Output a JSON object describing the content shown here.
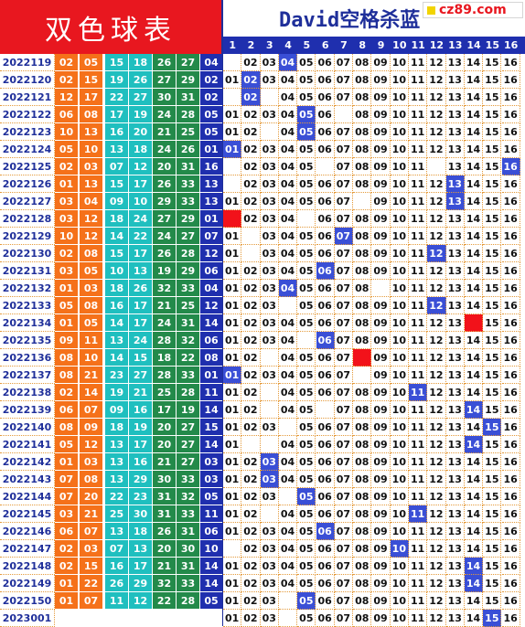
{
  "header": {
    "left_title": "双色球表",
    "right_title": "David空格杀蓝",
    "logo_text": "cz89.com"
  },
  "columns": [
    "1",
    "2",
    "3",
    "4",
    "5",
    "6",
    "7",
    "8",
    "9",
    "10",
    "11",
    "12",
    "13",
    "14",
    "15",
    "16"
  ],
  "colors": {
    "c1": "#f5711a",
    "c2": "#1fbfbf",
    "c3": "#238a4a",
    "blue": "#1f2fae",
    "hl": "#3a4fd6",
    "red": "#f2121a"
  },
  "chart_data": {
    "type": "table",
    "rows": [
      {
        "issue": "2022119",
        "reds": [
          "02",
          "05",
          "15",
          "18",
          "26",
          "27"
        ],
        "blue": "04",
        "hl": 4,
        "bl": [
          1
        ]
      },
      {
        "issue": "2022120",
        "reds": [
          "02",
          "15",
          "19",
          "26",
          "27",
          "29"
        ],
        "blue": "02",
        "hl": 2,
        "bl": []
      },
      {
        "issue": "2022121",
        "reds": [
          "12",
          "17",
          "22",
          "27",
          "30",
          "31"
        ],
        "blue": "02",
        "hl": 2,
        "bl": [
          1,
          3
        ]
      },
      {
        "issue": "2022122",
        "reds": [
          "06",
          "08",
          "17",
          "19",
          "24",
          "28"
        ],
        "blue": "05",
        "hl": 5,
        "bl": [
          7
        ]
      },
      {
        "issue": "2022123",
        "reds": [
          "10",
          "13",
          "16",
          "20",
          "21",
          "25"
        ],
        "blue": "05",
        "hl": 5,
        "bl": [
          3
        ]
      },
      {
        "issue": "2022124",
        "reds": [
          "05",
          "10",
          "13",
          "18",
          "24",
          "26"
        ],
        "blue": "01",
        "hl": 1,
        "bl": []
      },
      {
        "issue": "2022125",
        "reds": [
          "02",
          "03",
          "07",
          "12",
          "20",
          "31"
        ],
        "blue": "16",
        "hl": 16,
        "bl": [
          1,
          6,
          12
        ]
      },
      {
        "issue": "2022126",
        "reds": [
          "01",
          "13",
          "15",
          "17",
          "26",
          "33"
        ],
        "blue": "13",
        "hl": 13,
        "bl": [
          1
        ]
      },
      {
        "issue": "2022127",
        "reds": [
          "03",
          "04",
          "09",
          "10",
          "29",
          "33"
        ],
        "blue": "13",
        "hl": 13,
        "bl": [
          8
        ]
      },
      {
        "issue": "2022128",
        "reds": [
          "03",
          "12",
          "18",
          "24",
          "27",
          "29"
        ],
        "blue": "01",
        "hl": 1,
        "red": true,
        "bl": [
          5
        ]
      },
      {
        "issue": "2022129",
        "reds": [
          "10",
          "12",
          "14",
          "22",
          "24",
          "27"
        ],
        "blue": "07",
        "hl": 7,
        "bl": [
          2
        ]
      },
      {
        "issue": "2022130",
        "reds": [
          "02",
          "08",
          "15",
          "17",
          "26",
          "28"
        ],
        "blue": "12",
        "hl": 12,
        "bl": [
          2
        ]
      },
      {
        "issue": "2022131",
        "reds": [
          "03",
          "05",
          "10",
          "13",
          "19",
          "29"
        ],
        "blue": "06",
        "hl": 6,
        "bl": []
      },
      {
        "issue": "2022132",
        "reds": [
          "01",
          "03",
          "18",
          "26",
          "32",
          "33"
        ],
        "blue": "04",
        "hl": 4,
        "bl": [
          9
        ]
      },
      {
        "issue": "2022133",
        "reds": [
          "05",
          "08",
          "16",
          "17",
          "21",
          "25"
        ],
        "blue": "12",
        "hl": 12,
        "bl": [
          4
        ]
      },
      {
        "issue": "2022134",
        "reds": [
          "01",
          "05",
          "14",
          "17",
          "24",
          "31"
        ],
        "blue": "14",
        "hl": 14,
        "red": true,
        "bl": []
      },
      {
        "issue": "2022135",
        "reds": [
          "09",
          "11",
          "13",
          "24",
          "28",
          "32"
        ],
        "blue": "06",
        "hl": 6,
        "bl": [
          5
        ]
      },
      {
        "issue": "2022136",
        "reds": [
          "08",
          "10",
          "14",
          "15",
          "18",
          "22"
        ],
        "blue": "08",
        "hl": 8,
        "red": true,
        "bl": [
          3
        ]
      },
      {
        "issue": "2022137",
        "reds": [
          "08",
          "21",
          "23",
          "27",
          "28",
          "33"
        ],
        "blue": "01",
        "hl": 1,
        "bl": [
          8
        ]
      },
      {
        "issue": "2022138",
        "reds": [
          "02",
          "14",
          "19",
          "21",
          "25",
          "28"
        ],
        "blue": "11",
        "hl": 11,
        "bl": [
          3
        ]
      },
      {
        "issue": "2022139",
        "reds": [
          "06",
          "07",
          "09",
          "16",
          "17",
          "19"
        ],
        "blue": "14",
        "hl": 14,
        "bl": [
          3,
          6
        ]
      },
      {
        "issue": "2022140",
        "reds": [
          "08",
          "09",
          "18",
          "19",
          "20",
          "27"
        ],
        "blue": "15",
        "hl": 15,
        "bl": [
          4
        ]
      },
      {
        "issue": "2022141",
        "reds": [
          "05",
          "12",
          "13",
          "17",
          "20",
          "27"
        ],
        "blue": "14",
        "hl": 14,
        "bl": [
          2,
          3
        ]
      },
      {
        "issue": "2022142",
        "reds": [
          "01",
          "03",
          "13",
          "16",
          "21",
          "27"
        ],
        "blue": "03",
        "hl": 3,
        "bl": []
      },
      {
        "issue": "2022143",
        "reds": [
          "07",
          "08",
          "13",
          "29",
          "30",
          "33"
        ],
        "blue": "03",
        "hl": 3,
        "bl": []
      },
      {
        "issue": "2022144",
        "reds": [
          "07",
          "20",
          "22",
          "23",
          "31",
          "32"
        ],
        "blue": "05",
        "hl": 5,
        "bl": [
          4
        ]
      },
      {
        "issue": "2022145",
        "reds": [
          "03",
          "21",
          "25",
          "30",
          "31",
          "33"
        ],
        "blue": "11",
        "hl": 11,
        "bl": [
          3
        ]
      },
      {
        "issue": "2022146",
        "reds": [
          "06",
          "07",
          "13",
          "18",
          "26",
          "31"
        ],
        "blue": "06",
        "hl": 6,
        "bl": []
      },
      {
        "issue": "2022147",
        "reds": [
          "02",
          "03",
          "07",
          "13",
          "20",
          "30"
        ],
        "blue": "10",
        "hl": 10,
        "bl": [
          1
        ]
      },
      {
        "issue": "2022148",
        "reds": [
          "02",
          "15",
          "16",
          "17",
          "21",
          "31"
        ],
        "blue": "14",
        "hl": 14,
        "bl": []
      },
      {
        "issue": "2022149",
        "reds": [
          "01",
          "22",
          "26",
          "29",
          "32",
          "33"
        ],
        "blue": "14",
        "hl": 14,
        "bl": []
      },
      {
        "issue": "2022150",
        "reds": [
          "01",
          "07",
          "11",
          "12",
          "22",
          "28"
        ],
        "blue": "05",
        "hl": 5,
        "bl": [
          4
        ]
      },
      {
        "issue": "2023001",
        "reds": [
          "",
          "",
          "",
          "",
          "",
          ""
        ],
        "blue": "",
        "hl": 15,
        "bl": [
          4
        ]
      }
    ]
  }
}
